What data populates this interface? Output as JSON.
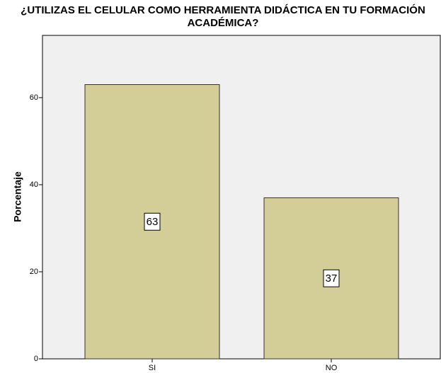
{
  "chart_data": {
    "type": "bar",
    "title": [
      "¿UTILIZAS EL CELULAR COMO HERRAMIENTA DIDÁCTICA EN TU FORMACIÓN",
      "ACADÉMICA?"
    ],
    "y_label": "Porcentaje",
    "categories": [
      "SI",
      "NO"
    ],
    "values": [
      63,
      37
    ],
    "color": "#d3ce98",
    "ylim": [
      0,
      74.3
    ],
    "yticks": [
      0,
      20,
      40,
      60
    ],
    "grid": false
  }
}
